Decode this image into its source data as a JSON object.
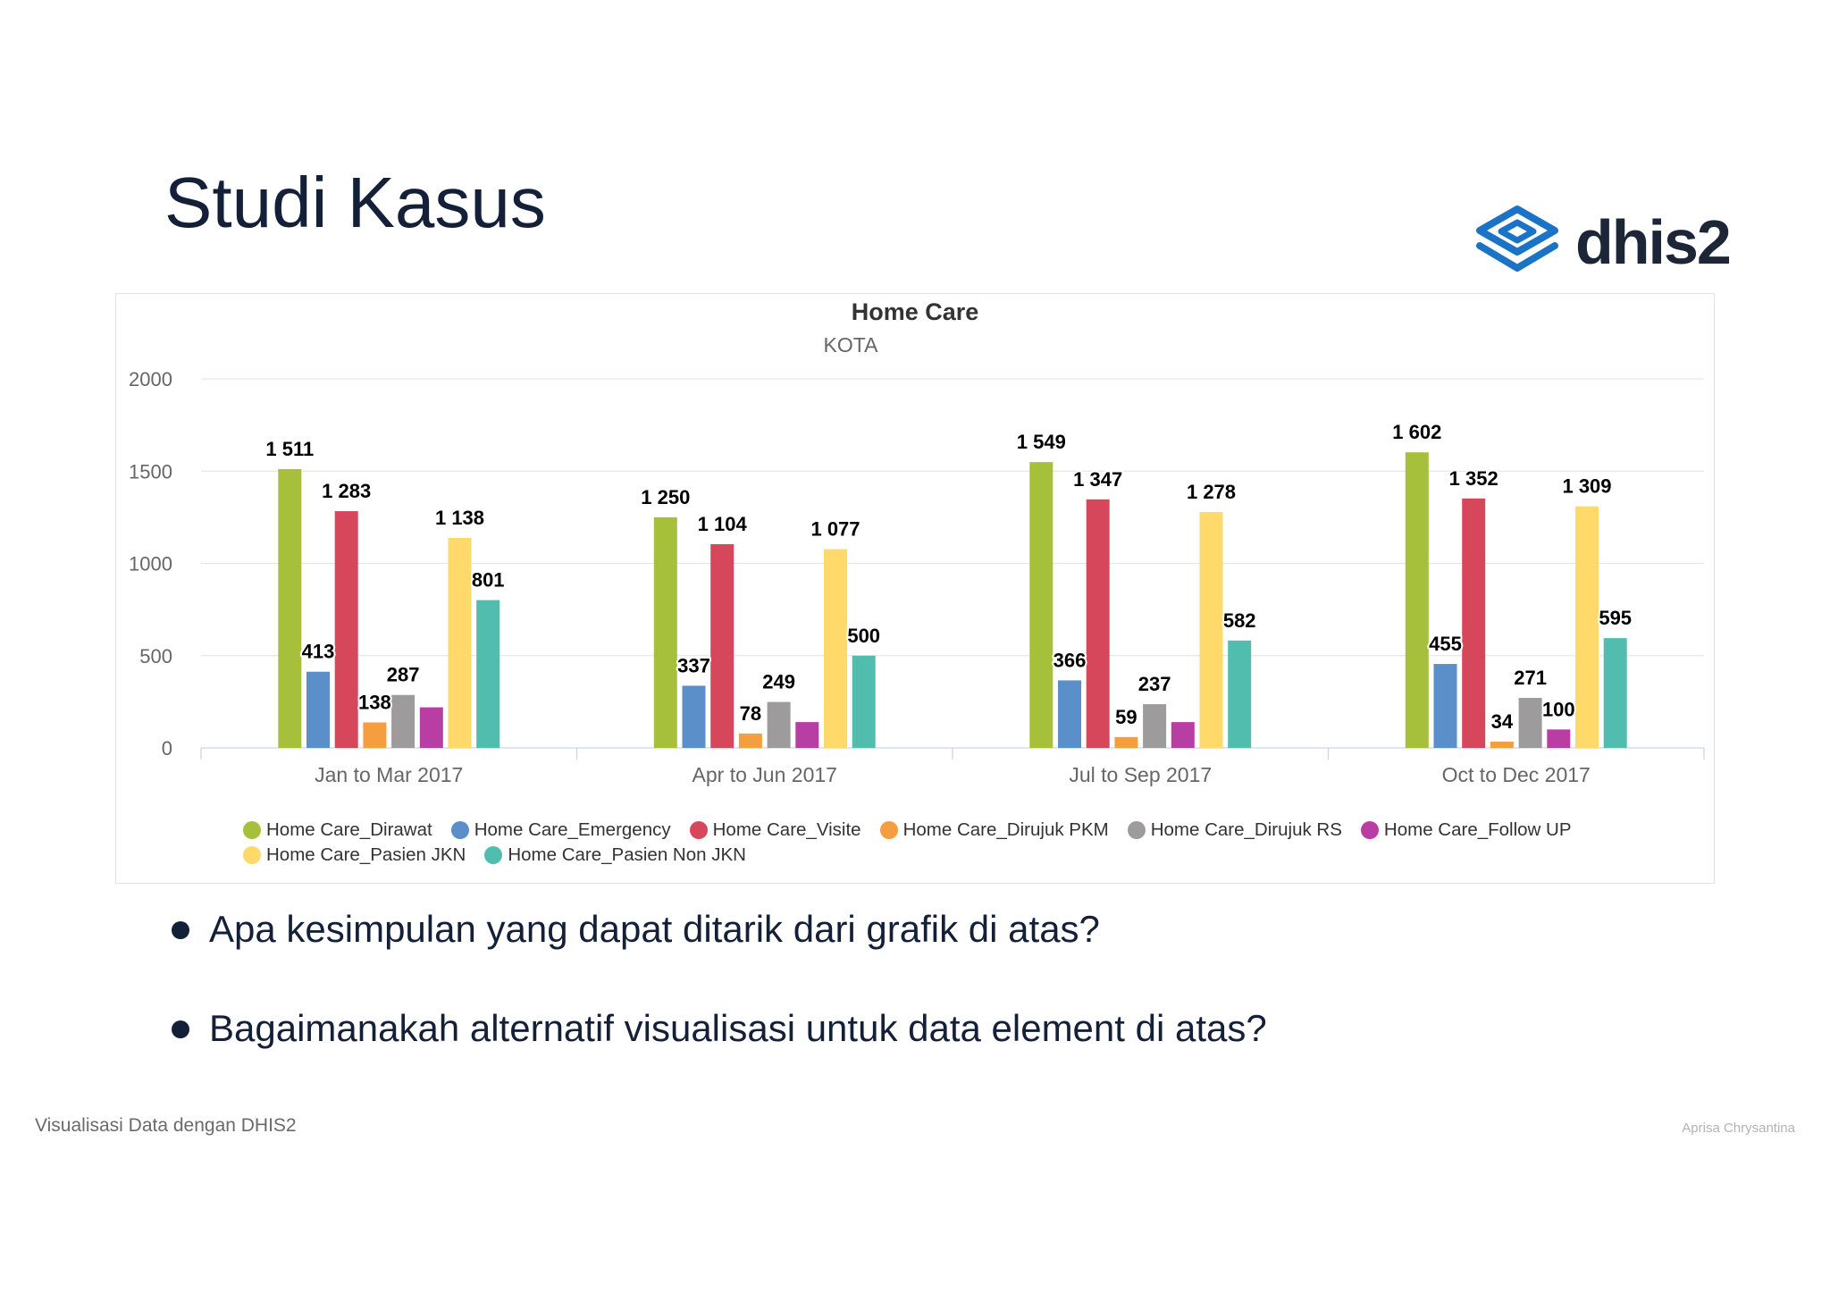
{
  "slide": {
    "title": "Studi Kasus",
    "logo_text": "dhis2",
    "logo_icon": "dhis2-logo-icon",
    "bullets": [
      "Apa kesimpulan yang dapat ditarik dari grafik di atas?",
      "Bagaimanakah alternatif visualisasi untuk data element di atas?"
    ],
    "footer_left": "Visualisasi Data dengan DHIS2",
    "footer_right": "Aprisa Chrysantina"
  },
  "colors": {
    "title_text": "#141f38",
    "logo_blue": "#1a73c4",
    "logo_text": "#1d2636",
    "background": "#ffffff"
  },
  "chart_data": {
    "type": "bar",
    "title": "Home Care",
    "subtitle": "KOTA",
    "categories": [
      "Jan to Mar 2017",
      "Apr to Jun 2017",
      "Jul to Sep 2017",
      "Oct to Dec 2017"
    ],
    "ylim": [
      0,
      2000
    ],
    "yticks": [
      0,
      500,
      1000,
      1500,
      2000
    ],
    "grid": true,
    "legend": "bottom",
    "series": [
      {
        "name": "Home Care_Dirawat",
        "color": "#a7c03b",
        "values": [
          1511,
          1250,
          1549,
          1602
        ],
        "labels": [
          "1 511",
          "1 250",
          "1 549",
          "1 602"
        ]
      },
      {
        "name": "Home Care_Emergency",
        "color": "#5a8fc9",
        "values": [
          413,
          337,
          366,
          455
        ],
        "labels": [
          "413",
          "337",
          "366",
          "455"
        ]
      },
      {
        "name": "Home Care_Visite",
        "color": "#d7475b",
        "values": [
          1283,
          1104,
          1347,
          1352
        ],
        "labels": [
          "1 283",
          "1 104",
          "1 347",
          "1 352"
        ]
      },
      {
        "name": "Home Care_Dirujuk PKM",
        "color": "#f59e3f",
        "values": [
          138,
          78,
          59,
          34
        ],
        "labels": [
          "138",
          "78",
          "59",
          "34"
        ]
      },
      {
        "name": "Home Care_Dirujuk RS",
        "color": "#9d9b9c",
        "values": [
          287,
          249,
          237,
          271
        ],
        "labels": [
          "287",
          "249",
          "237",
          "271"
        ]
      },
      {
        "name": "Home Care_Follow UP",
        "color": "#b93ea3",
        "values": [
          220,
          140,
          140,
          100
        ],
        "labels": [
          null,
          null,
          null,
          "100"
        ]
      },
      {
        "name": "Home Care_Pasien JKN",
        "color": "#ffd96a",
        "values": [
          1138,
          1077,
          1278,
          1309
        ],
        "labels": [
          "1 138",
          "1 077",
          "1 278",
          "1 309"
        ]
      },
      {
        "name": "Home Care_Pasien Non JKN",
        "color": "#50bdaf",
        "values": [
          801,
          500,
          582,
          595
        ],
        "labels": [
          "801",
          "500",
          "582",
          "595"
        ]
      }
    ]
  }
}
